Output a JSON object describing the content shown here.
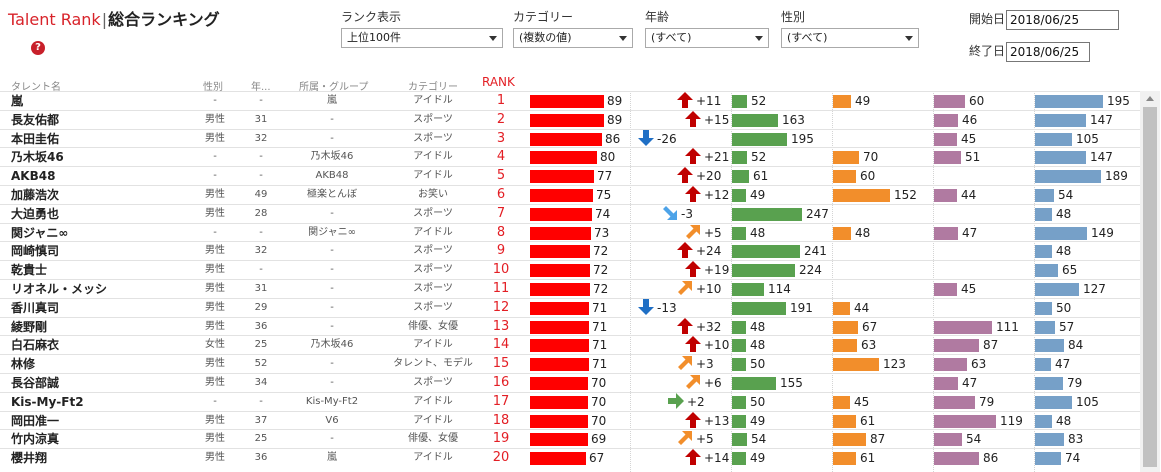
{
  "title": {
    "app": "Talent Rank",
    "separator": "|",
    "page": "総合ランキング"
  },
  "help": {
    "glyph": "?"
  },
  "filters": [
    {
      "label": "ランク表示",
      "value": "上位100件"
    },
    {
      "label": "カテゴリー",
      "value": "(複数の値)"
    },
    {
      "label": "年齢",
      "value": "(すべて)"
    },
    {
      "label": "性別",
      "value": "(すべて)"
    }
  ],
  "dates": {
    "start_label": "開始日",
    "start_value": "2018/06/25",
    "end_label": "終了日",
    "end_value": "2018/06/25"
  },
  "headers": {
    "name": "タレント名",
    "gender": "性別",
    "age": "年...",
    "group": "所属・グループ",
    "category": "カテゴリー",
    "rank": "RANK"
  },
  "colors": {
    "score": "#ff0000",
    "up": "#c00000",
    "down": "#1f6fc5",
    "up_slight": "#f28e2b",
    "down_slight": "#4da3e8",
    "flat": "#59a14f",
    "green": "#59a14f",
    "orange": "#f28e2b",
    "purple": "#b07aa1",
    "blue": "#76a0c8"
  },
  "rows": [
    {
      "name": "嵐",
      "gender": "-",
      "age": "-",
      "group": "嵐",
      "category": "アイドル",
      "rank": "1",
      "score": 89,
      "change": "+11",
      "trend": "up",
      "m1": 52,
      "m2": 49,
      "m3": 60,
      "m4": 195
    },
    {
      "name": "長友佑都",
      "gender": "男性",
      "age": "31",
      "group": "-",
      "category": "スポーツ",
      "rank": "2",
      "score": 89,
      "change": "+15",
      "trend": "up",
      "m1": 163,
      "m2": null,
      "m3": 46,
      "m4": 147
    },
    {
      "name": "本田圭佑",
      "gender": "男性",
      "age": "32",
      "group": "-",
      "category": "スポーツ",
      "rank": "3",
      "score": 86,
      "change": "-26",
      "trend": "down",
      "m1": 195,
      "m2": null,
      "m3": 45,
      "m4": 105
    },
    {
      "name": "乃木坂46",
      "gender": "-",
      "age": "-",
      "group": "乃木坂46",
      "category": "アイドル",
      "rank": "4",
      "score": 80,
      "change": "+21",
      "trend": "up",
      "m1": 52,
      "m2": 70,
      "m3": 51,
      "m4": 147
    },
    {
      "name": "AKB48",
      "gender": "-",
      "age": "-",
      "group": "AKB48",
      "category": "アイドル",
      "rank": "5",
      "score": 77,
      "change": "+20",
      "trend": "up",
      "m1": 61,
      "m2": 60,
      "m3": null,
      "m4": 189
    },
    {
      "name": "加藤浩次",
      "gender": "男性",
      "age": "49",
      "group": "極楽とんぼ",
      "category": "お笑い",
      "rank": "6",
      "score": 75,
      "change": "+12",
      "trend": "up",
      "m1": 49,
      "m2": 152,
      "m3": 44,
      "m4": 54
    },
    {
      "name": "大迫勇也",
      "gender": "男性",
      "age": "28",
      "group": "-",
      "category": "スポーツ",
      "rank": "7",
      "score": 74,
      "change": "-3",
      "trend": "down_slight",
      "m1": 247,
      "m2": null,
      "m3": null,
      "m4": 48
    },
    {
      "name": "関ジャニ∞",
      "gender": "-",
      "age": "-",
      "group": "関ジャニ∞",
      "category": "アイドル",
      "rank": "8",
      "score": 73,
      "change": "+5",
      "trend": "up_slight",
      "m1": 48,
      "m2": 48,
      "m3": 47,
      "m4": 149
    },
    {
      "name": "岡崎慎司",
      "gender": "男性",
      "age": "32",
      "group": "-",
      "category": "スポーツ",
      "rank": "9",
      "score": 72,
      "change": "+24",
      "trend": "up",
      "m1": 241,
      "m2": null,
      "m3": null,
      "m4": 48
    },
    {
      "name": "乾貴士",
      "gender": "男性",
      "age": "-",
      "group": "-",
      "category": "スポーツ",
      "rank": "10",
      "score": 72,
      "change": "+19",
      "trend": "up",
      "m1": 224,
      "m2": null,
      "m3": null,
      "m4": 65
    },
    {
      "name": "リオネル・メッシ",
      "gender": "男性",
      "age": "31",
      "group": "-",
      "category": "スポーツ",
      "rank": "11",
      "score": 72,
      "change": "+10",
      "trend": "up_slight",
      "m1": 114,
      "m2": null,
      "m3": 45,
      "m4": 127
    },
    {
      "name": "香川真司",
      "gender": "男性",
      "age": "29",
      "group": "-",
      "category": "スポーツ",
      "rank": "12",
      "score": 71,
      "change": "-13",
      "trend": "down",
      "m1": 191,
      "m2": 44,
      "m3": null,
      "m4": 50
    },
    {
      "name": "綾野剛",
      "gender": "男性",
      "age": "36",
      "group": "-",
      "category": "俳優、女優",
      "rank": "13",
      "score": 71,
      "change": "+32",
      "trend": "up",
      "m1": 48,
      "m2": 67,
      "m3": 111,
      "m4": 57
    },
    {
      "name": "白石麻衣",
      "gender": "女性",
      "age": "25",
      "group": "乃木坂46",
      "category": "アイドル",
      "rank": "14",
      "score": 71,
      "change": "+10",
      "trend": "up",
      "m1": 48,
      "m2": 63,
      "m3": 87,
      "m4": 84
    },
    {
      "name": "林修",
      "gender": "男性",
      "age": "52",
      "group": "-",
      "category": "タレント、モデル",
      "rank": "15",
      "score": 71,
      "change": "+3",
      "trend": "up_slight",
      "m1": 50,
      "m2": 123,
      "m3": 63,
      "m4": 47
    },
    {
      "name": "長谷部誠",
      "gender": "男性",
      "age": "34",
      "group": "-",
      "category": "スポーツ",
      "rank": "16",
      "score": 70,
      "change": "+6",
      "trend": "up_slight",
      "m1": 155,
      "m2": null,
      "m3": 47,
      "m4": 79
    },
    {
      "name": "Kis-My-Ft2",
      "gender": "-",
      "age": "-",
      "group": "Kis-My-Ft2",
      "category": "アイドル",
      "rank": "17",
      "score": 70,
      "change": "+2",
      "trend": "flat",
      "m1": 50,
      "m2": 45,
      "m3": 79,
      "m4": 105
    },
    {
      "name": "岡田准一",
      "gender": "男性",
      "age": "37",
      "group": "V6",
      "category": "アイドル",
      "rank": "18",
      "score": 70,
      "change": "+13",
      "trend": "up",
      "m1": 49,
      "m2": 61,
      "m3": 119,
      "m4": 48
    },
    {
      "name": "竹内涼真",
      "gender": "男性",
      "age": "25",
      "group": "-",
      "category": "俳優、女優",
      "rank": "19",
      "score": 69,
      "change": "+5",
      "trend": "up_slight",
      "m1": 54,
      "m2": 87,
      "m3": 54,
      "m4": 83
    },
    {
      "name": "櫻井翔",
      "gender": "男性",
      "age": "36",
      "group": "嵐",
      "category": "アイドル",
      "rank": "20",
      "score": 67,
      "change": "+14",
      "trend": "up",
      "m1": 49,
      "m2": 61,
      "m3": 86,
      "m4": 74
    }
  ]
}
